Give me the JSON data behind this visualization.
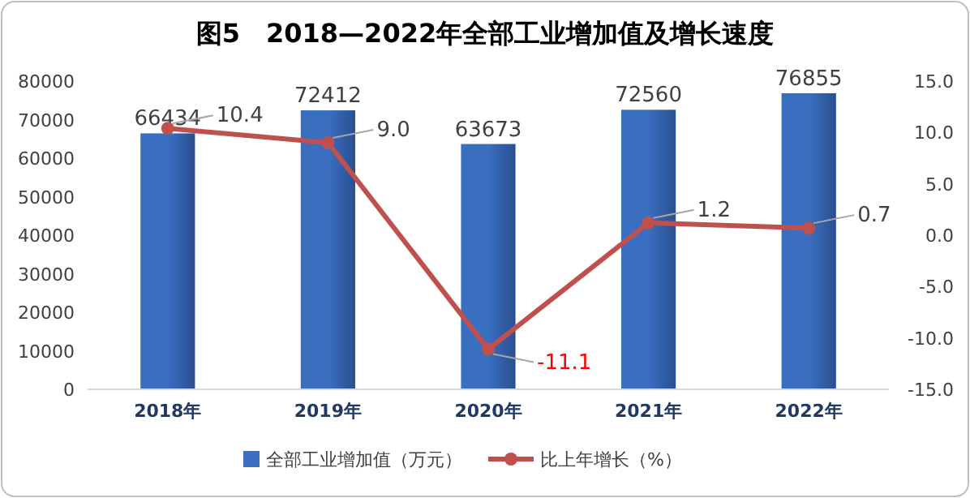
{
  "chart_data": {
    "type": "bar",
    "title": "图5　2018—2022年全部工业增加值及增长速度",
    "categories": [
      "2018年",
      "2019年",
      "2020年",
      "2021年",
      "2022年"
    ],
    "series": [
      {
        "name": "全部工业增加值（万元）",
        "color": "#3a6fc0",
        "values": [
          66434,
          72412,
          63673,
          72560,
          76855
        ]
      },
      {
        "name": "比上年增长（%）",
        "type": "line",
        "axis": "y2",
        "color": "#c0504d",
        "marker": "circle",
        "values": [
          10.4,
          9.0,
          -11.1,
          1.2,
          0.7
        ],
        "value_labels": [
          "10.4",
          "9.0",
          "-11.1",
          "1.2",
          "0.7"
        ]
      }
    ],
    "ylim": [
      0,
      80000
    ],
    "yticks": [
      0,
      10000,
      20000,
      30000,
      40000,
      50000,
      60000,
      70000,
      80000
    ],
    "y2lim": [
      -15,
      15
    ],
    "y2ticks": [
      {
        "value": -15,
        "label": "-15.0"
      },
      {
        "value": -10,
        "label": "-10.0"
      },
      {
        "value": -5,
        "label": "-5.0"
      },
      {
        "value": 0,
        "label": "0.0"
      },
      {
        "value": 5,
        "label": "5.0"
      },
      {
        "value": 10,
        "label": "10.0"
      },
      {
        "value": 15,
        "label": "15.0"
      }
    ],
    "data_labels": true,
    "legend": "bottom",
    "grid": false
  }
}
